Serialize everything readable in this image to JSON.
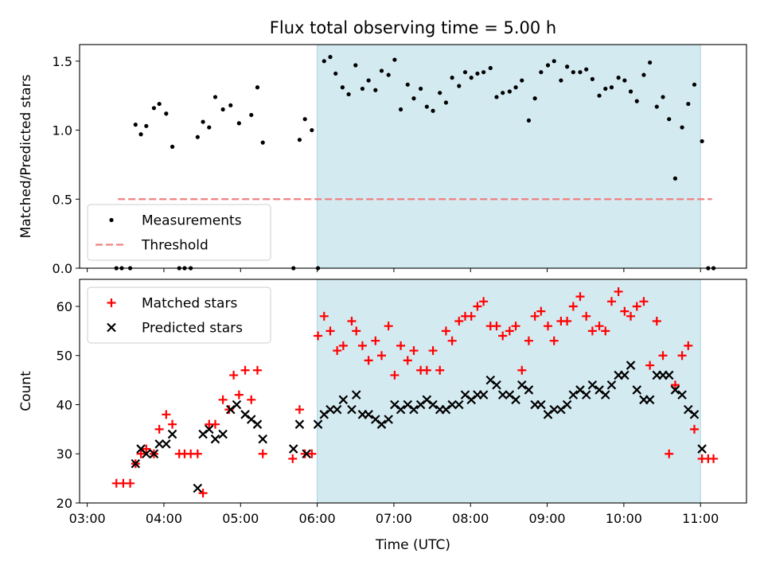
{
  "chart_data": {
    "title": "Flux total observing time = 5.00 h",
    "xlabel": "Time (UTC)",
    "x_ticks": [
      "03:00",
      "04:00",
      "05:00",
      "06:00",
      "07:00",
      "08:00",
      "09:00",
      "10:00",
      "11:00"
    ],
    "x_tick_hours": [
      3,
      4,
      5,
      6,
      7,
      8,
      9,
      10,
      11
    ],
    "xlim_hours": [
      2.9,
      11.6
    ],
    "observing_window_hours": [
      6.0,
      11.0
    ],
    "observing_window_color": "#d4eaf1",
    "panels": [
      {
        "type": "scatter",
        "ylabel": "Matched/Predicted stars",
        "ylim": [
          0,
          1.62
        ],
        "y_ticks": [
          0,
          0.5,
          1.0,
          1.5
        ],
        "y_tick_labels": [
          "0.0",
          "0.5",
          "1.0",
          "1.5"
        ],
        "legend_position": "lower-left",
        "threshold": {
          "name": "Threshold",
          "value": 0.5,
          "x_range_hours": [
            3.4,
            11.15
          ],
          "color": "#f08080"
        },
        "series": [
          {
            "name": "Measurements",
            "color": "#000000",
            "marker": "dot",
            "x_hours": [
              3.38,
              3.45,
              3.56,
              3.63,
              3.7,
              3.77,
              3.87,
              3.94,
              4.03,
              4.11,
              4.2,
              4.27,
              4.35,
              4.44,
              4.51,
              4.59,
              4.67,
              4.77,
              4.87,
              4.98,
              5.14,
              5.22,
              5.29,
              5.69,
              5.77,
              5.84,
              5.93,
              6.01,
              6.09,
              6.17,
              6.24,
              6.33,
              6.41,
              6.5,
              6.59,
              6.67,
              6.76,
              6.84,
              6.93,
              7.01,
              7.09,
              7.18,
              7.26,
              7.35,
              7.43,
              7.51,
              7.6,
              7.68,
              7.76,
              7.85,
              7.93,
              8.01,
              8.09,
              8.17,
              8.26,
              8.34,
              8.42,
              8.51,
              8.59,
              8.67,
              8.76,
              8.84,
              8.92,
              9.01,
              9.09,
              9.18,
              9.26,
              9.34,
              9.43,
              9.51,
              9.59,
              9.68,
              9.76,
              9.84,
              9.93,
              10.01,
              10.09,
              10.17,
              10.26,
              10.34,
              10.43,
              10.51,
              10.59,
              10.67,
              10.76,
              10.84,
              10.92,
              11.02,
              11.1,
              11.17
            ],
            "y": [
              0,
              0,
              0,
              1.04,
              0.97,
              1.03,
              1.16,
              1.19,
              1.12,
              0.88,
              0,
              0,
              0,
              0.95,
              1.06,
              1.02,
              1.24,
              1.15,
              1.18,
              1.05,
              1.11,
              1.31,
              0.91,
              0,
              0.93,
              1.08,
              1.0,
              0,
              1.5,
              1.53,
              1.41,
              1.31,
              1.26,
              1.47,
              1.3,
              1.36,
              1.29,
              1.43,
              1.4,
              1.51,
              1.15,
              1.33,
              1.23,
              1.3,
              1.17,
              1.14,
              1.27,
              1.2,
              1.38,
              1.32,
              1.42,
              1.38,
              1.41,
              1.42,
              1.45,
              1.24,
              1.27,
              1.28,
              1.31,
              1.36,
              1.07,
              1.23,
              1.42,
              1.47,
              1.5,
              1.36,
              1.46,
              1.42,
              1.42,
              1.44,
              1.37,
              1.25,
              1.3,
              1.31,
              1.38,
              1.36,
              1.28,
              1.21,
              1.4,
              1.49,
              1.17,
              1.24,
              1.08,
              0.65,
              1.02,
              1.19,
              1.33,
              0.92,
              0,
              0
            ]
          }
        ]
      },
      {
        "type": "scatter",
        "ylabel": "Count",
        "ylim": [
          20,
          65.5
        ],
        "y_ticks": [
          20,
          30,
          40,
          50,
          60
        ],
        "y_tick_labels": [
          "20",
          "30",
          "40",
          "50",
          "60"
        ],
        "legend_position": "upper-left",
        "series": [
          {
            "name": "Matched stars",
            "color": "#ff0000",
            "marker": "plus",
            "x_hours": [
              3.38,
              3.47,
              3.56,
              3.63,
              3.7,
              3.77,
              3.87,
              3.94,
              4.03,
              4.11,
              4.2,
              4.27,
              4.35,
              4.44,
              4.51,
              4.59,
              4.67,
              4.77,
              4.85,
              4.91,
              4.98,
              5.06,
              5.14,
              5.22,
              5.29,
              5.68,
              5.77,
              5.84,
              5.93,
              6.01,
              6.09,
              6.17,
              6.26,
              6.34,
              6.45,
              6.51,
              6.59,
              6.67,
              6.76,
              6.84,
              6.93,
              7.01,
              7.09,
              7.18,
              7.26,
              7.35,
              7.43,
              7.51,
              7.6,
              7.68,
              7.76,
              7.85,
              7.93,
              8.01,
              8.09,
              8.17,
              8.26,
              8.34,
              8.42,
              8.51,
              8.59,
              8.67,
              8.76,
              8.84,
              8.92,
              9.01,
              9.09,
              9.18,
              9.26,
              9.34,
              9.43,
              9.51,
              9.59,
              9.68,
              9.76,
              9.84,
              9.93,
              10.01,
              10.09,
              10.17,
              10.26,
              10.34,
              10.43,
              10.51,
              10.59,
              10.67,
              10.76,
              10.84,
              10.92,
              11.02,
              11.1,
              11.17
            ],
            "y": [
              24,
              24,
              24,
              28,
              30,
              31,
              30,
              35,
              38,
              36,
              30,
              30,
              30,
              30,
              22,
              36,
              36,
              41,
              39,
              46,
              42,
              47,
              41,
              47,
              30,
              29,
              39,
              30,
              30,
              54,
              58,
              55,
              51,
              52,
              57,
              55,
              52,
              49,
              53,
              50,
              56,
              46,
              52,
              49,
              51,
              47,
              47,
              51,
              47,
              55,
              53,
              57,
              58,
              58,
              60,
              61,
              56,
              56,
              54,
              55,
              56,
              47,
              53,
              58,
              59,
              56,
              53,
              57,
              57,
              60,
              62,
              58,
              55,
              56,
              55,
              61,
              63,
              59,
              58,
              60,
              61,
              48,
              57,
              50,
              30,
              44,
              50,
              52,
              35,
              29,
              29,
              29
            ]
          },
          {
            "name": "Predicted stars",
            "color": "#000000",
            "marker": "x",
            "x_hours": [
              3.63,
              3.7,
              3.77,
              3.87,
              3.94,
              4.03,
              4.11,
              4.44,
              4.51,
              4.59,
              4.67,
              4.77,
              4.87,
              4.95,
              5.06,
              5.14,
              5.22,
              5.29,
              5.69,
              5.77,
              5.86,
              6.01,
              6.09,
              6.17,
              6.26,
              6.34,
              6.45,
              6.51,
              6.59,
              6.67,
              6.76,
              6.84,
              6.93,
              7.01,
              7.09,
              7.18,
              7.26,
              7.35,
              7.43,
              7.51,
              7.6,
              7.68,
              7.76,
              7.85,
              7.93,
              8.01,
              8.09,
              8.17,
              8.26,
              8.34,
              8.42,
              8.51,
              8.59,
              8.67,
              8.76,
              8.84,
              8.92,
              9.01,
              9.09,
              9.18,
              9.26,
              9.34,
              9.43,
              9.51,
              9.59,
              9.68,
              9.76,
              9.84,
              9.93,
              10.01,
              10.09,
              10.17,
              10.26,
              10.34,
              10.43,
              10.51,
              10.59,
              10.67,
              10.76,
              10.84,
              10.92,
              11.02
            ],
            "y": [
              28,
              31,
              30,
              30,
              32,
              32,
              34,
              23,
              34,
              35,
              33,
              34,
              39,
              40,
              38,
              37,
              36,
              33,
              31,
              36,
              30,
              36,
              38,
              39,
              39,
              41,
              39,
              42,
              38,
              38,
              37,
              36,
              37,
              40,
              39,
              40,
              39,
              40,
              41,
              40,
              39,
              39,
              40,
              40,
              42,
              41,
              42,
              42,
              45,
              44,
              42,
              42,
              41,
              44,
              43,
              40,
              40,
              38,
              39,
              39,
              40,
              42,
              43,
              42,
              44,
              43,
              42,
              44,
              46,
              46,
              48,
              43,
              41,
              41,
              46,
              46,
              46,
              43,
              42,
              39,
              38,
              31
            ]
          }
        ]
      }
    ]
  }
}
